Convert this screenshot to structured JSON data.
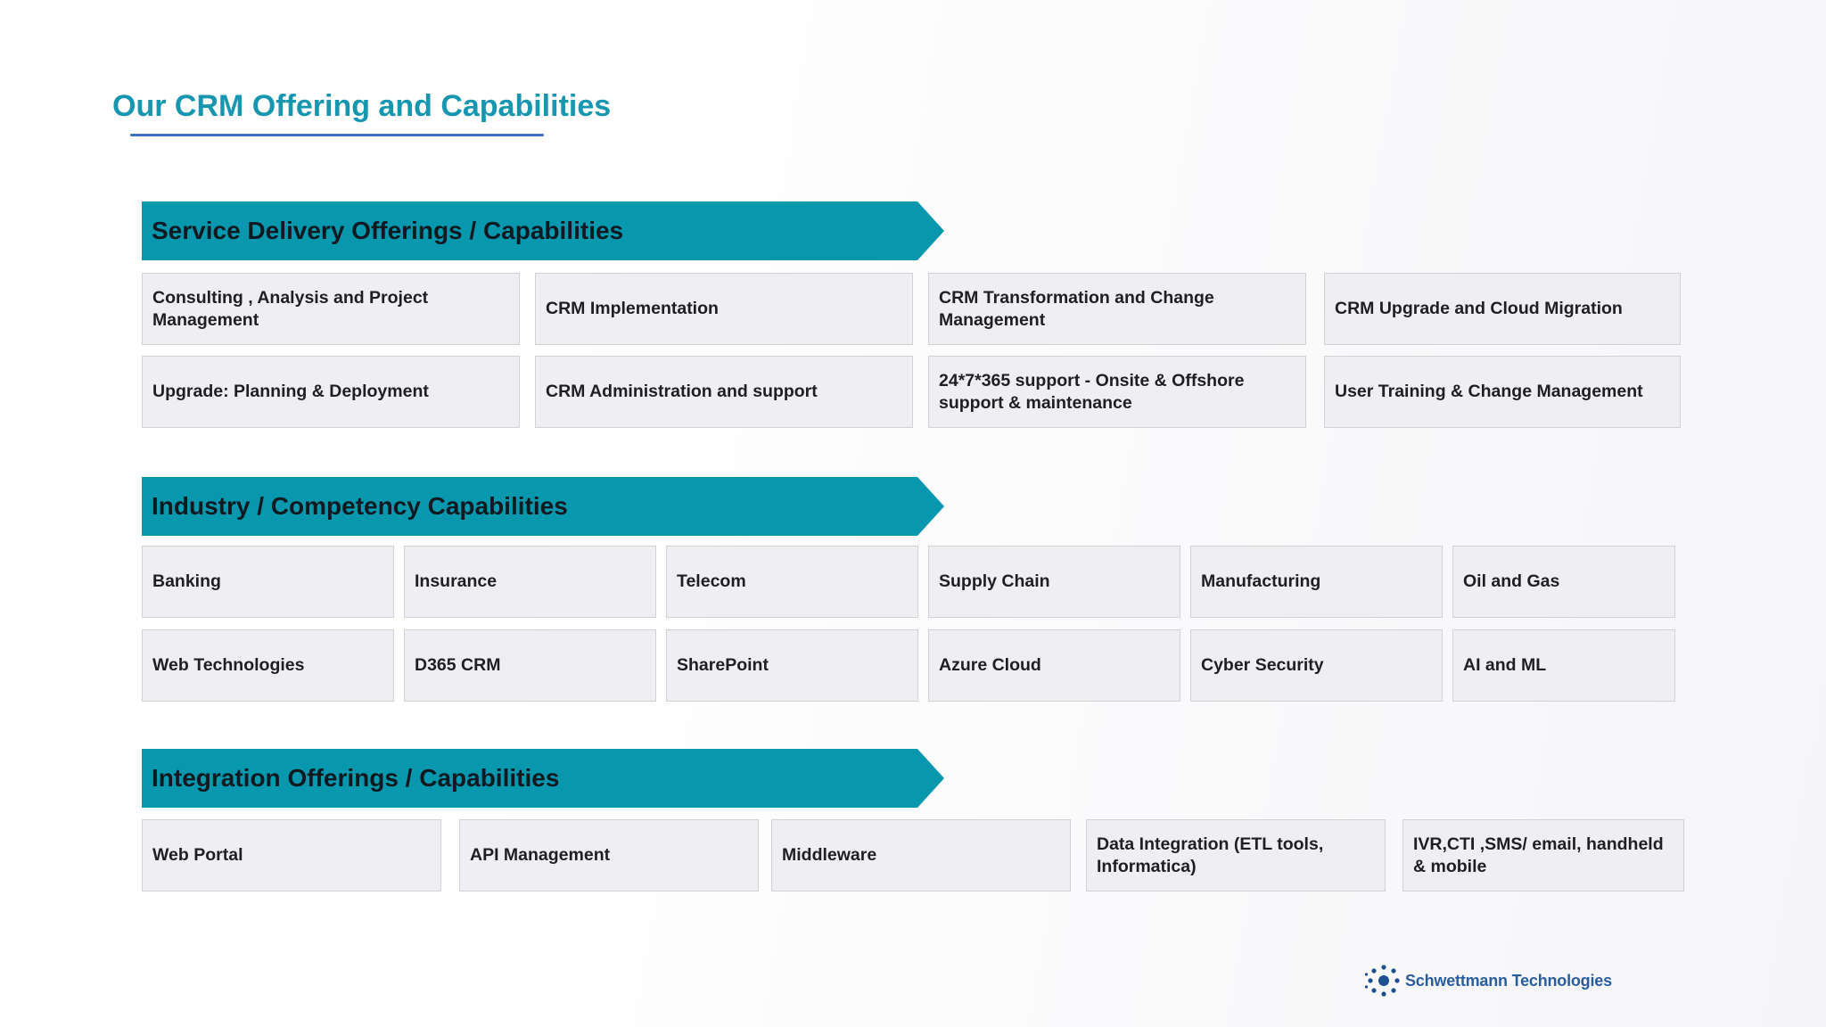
{
  "title": "Our CRM Offering and Capabilities",
  "colors": {
    "title": "#1796b0",
    "banner": "#0898ad",
    "card_bg": "#efeff2",
    "card_border": "#d1d1d8",
    "underline": "#3f6fc2"
  },
  "sections": {
    "service": {
      "heading": "Service Delivery Offerings / Capabilities",
      "items": [
        "Consulting , Analysis and Project Management",
        "CRM Implementation",
        "CRM Transformation  and Change Management",
        "CRM Upgrade and Cloud Migration",
        "Upgrade:  Planning & Deployment",
        "CRM Administration  and support",
        "24*7*365 support - Onsite & Offshore support & maintenance",
        "User Training & Change Management"
      ]
    },
    "industry": {
      "heading": "Industry / Competency  Capabilities",
      "items": [
        "Banking",
        "Insurance",
        "Telecom",
        "Supply Chain",
        "Manufacturing",
        "Oil and Gas",
        "Web Technologies",
        "D365 CRM",
        "SharePoint",
        "Azure Cloud",
        "Cyber Security",
        "AI and ML"
      ]
    },
    "integration": {
      "heading": "Integration Offerings / Capabilities",
      "items": [
        "Web Portal",
        "API Management",
        "Middleware",
        "Data Integration (ETL tools, Informatica)",
        "IVR,CTI ,SMS/ email, handheld & mobile"
      ]
    }
  },
  "logo": {
    "icon": "dots-cluster-icon",
    "text": "Schwettmann Technologies"
  }
}
